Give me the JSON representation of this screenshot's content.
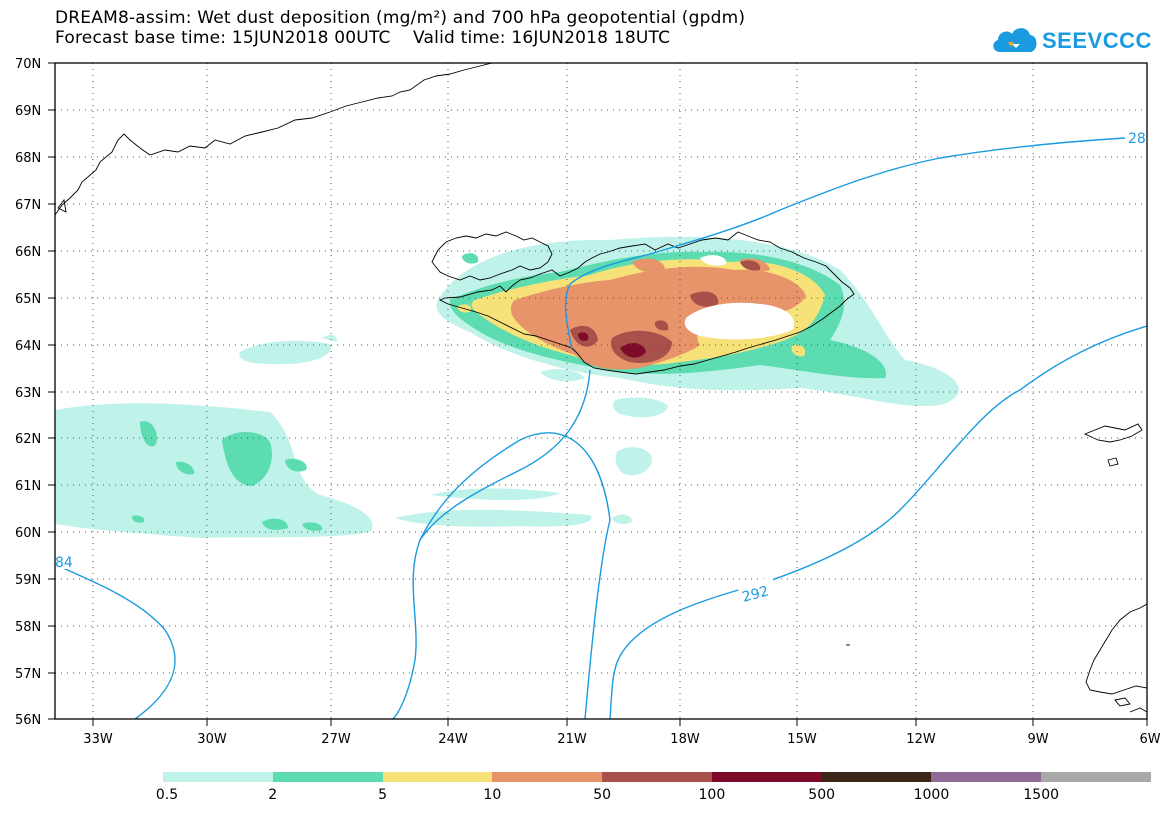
{
  "title": {
    "line1": "DREAM8-assim: Wet dust deposition (mg/m²) and 700 hPa geopotential (gpdm)",
    "line2": "Forecast base time: 15JUN2018 00UTC    Valid time: 16JUN2018 18UTC"
  },
  "logo": {
    "text": "SEEVCCC",
    "icon": "cloud-icon"
  },
  "map": {
    "lon_range": [
      -34.5,
      -6
    ],
    "lat_range": [
      56,
      70
    ],
    "lat_labels": [
      "56N",
      "57N",
      "58N",
      "59N",
      "60N",
      "61N",
      "62N",
      "63N",
      "64N",
      "65N",
      "66N",
      "67N",
      "68N",
      "69N",
      "70N"
    ],
    "lon_labels": [
      "33W",
      "30W",
      "27W",
      "24W",
      "21W",
      "18W",
      "15W",
      "12W",
      "9W",
      "6W"
    ],
    "grid": "dotted",
    "contour_color": "#1a9be0",
    "contour_labels": [
      "28",
      "84",
      "292"
    ]
  },
  "legend": {
    "colors": [
      "#bff3ea",
      "#5cdcb0",
      "#f7e27a",
      "#e8946a",
      "#a8514a",
      "#7e0a2a",
      "#3c2417",
      "#8e6a96",
      "#a9a9a9"
    ],
    "labels": [
      "0.5",
      "2",
      "5",
      "10",
      "50",
      "100",
      "500",
      "1000",
      "1500"
    ]
  }
}
